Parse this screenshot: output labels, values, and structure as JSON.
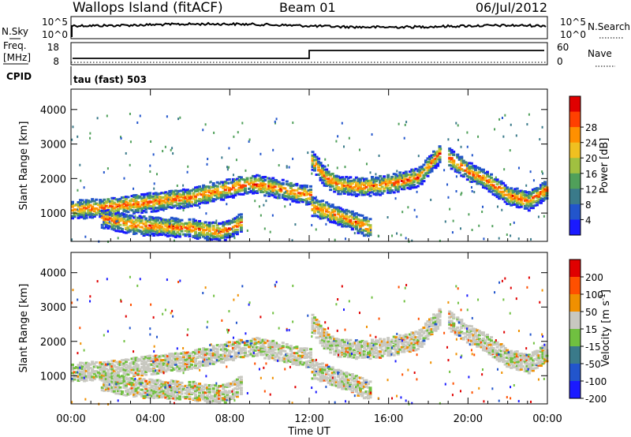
{
  "header": {
    "station": "Wallops Island (fitACF)",
    "beam": "Beam 01",
    "date": "06/Jul/2012"
  },
  "aux_panels": {
    "noise": {
      "left_label": "N.Sky",
      "right_label": "N.Search",
      "left_ticks": [
        "10^5",
        "10^0"
      ],
      "right_ticks": [
        "10^5",
        "10^0"
      ]
    },
    "freq": {
      "left_label_line1": "Freq.",
      "left_label_line2": "[MHz]",
      "right_label": "Nave",
      "left_ticks": [
        "18",
        "8"
      ],
      "right_ticks": [
        "60",
        "0"
      ]
    },
    "cpid": {
      "label": "CPID",
      "value_text": "tau (fast) 503"
    }
  },
  "chart_data": [
    {
      "type": "heatmap",
      "title": "Power",
      "ylabel": "Slant Range [km]",
      "ylim": [
        180,
        4590
      ],
      "yticks": [
        "1000",
        "2000",
        "3000",
        "4000"
      ],
      "xlabel": "Time UT",
      "xticks": [
        "00:00",
        "04:00",
        "08:00",
        "12:00",
        "16:00",
        "20:00",
        "00:00"
      ],
      "xlim_hours": [
        0,
        24
      ],
      "colorbar": {
        "label": "Power [dB]",
        "ticks": [
          "4",
          "8",
          "12",
          "16",
          "20",
          "24",
          "28"
        ],
        "colors": [
          "#1a1aff",
          "#2255cc",
          "#3a7a8a",
          "#50a05a",
          "#a0c040",
          "#f0c020",
          "#ff9000",
          "#ff4000",
          "#e00000"
        ]
      },
      "echo_bands": [
        {
          "t_hours": [
            0.0,
            1.5,
            3.0,
            4.5,
            6.0,
            7.5,
            9.0,
            10.5,
            12.0
          ],
          "range_km": [
            1100,
            1150,
            1250,
            1350,
            1450,
            1650,
            1850,
            1700,
            1500
          ]
        },
        {
          "t_hours": [
            1.5,
            3.0,
            4.5,
            6.0,
            7.5,
            8.5
          ],
          "range_km": [
            850,
            650,
            600,
            550,
            450,
            700
          ]
        },
        {
          "t_hours": [
            12.0,
            12.8,
            13.5,
            14.5,
            15.5,
            16.5,
            17.5,
            18.5
          ],
          "range_km": [
            2600,
            2000,
            1800,
            1750,
            1800,
            1900,
            2050,
            2700
          ]
        },
        {
          "t_hours": [
            12.0,
            13.0,
            14.0,
            15.0
          ],
          "range_km": [
            1200,
            1000,
            800,
            550
          ]
        },
        {
          "t_hours": [
            19.0,
            20.0,
            21.0,
            22.0,
            23.0,
            24.0
          ],
          "range_km": [
            2600,
            2200,
            1900,
            1500,
            1350,
            1700
          ]
        }
      ]
    },
    {
      "type": "heatmap",
      "title": "Velocity",
      "ylabel": "Slant Range [km]",
      "ylim": [
        180,
        4590
      ],
      "yticks": [
        "1000",
        "2000",
        "3000",
        "4000"
      ],
      "xlabel": "Time UT",
      "xticks": [
        "00:00",
        "04:00",
        "08:00",
        "12:00",
        "16:00",
        "20:00",
        "00:00"
      ],
      "xlim_hours": [
        0,
        24
      ],
      "colorbar": {
        "label": "Velocity [m s^-1]",
        "ticks": [
          "200",
          "100",
          "50",
          "15",
          "-15",
          "-50",
          "-100",
          "-200"
        ],
        "colors": [
          "#1a1aff",
          "#2255cc",
          "#3a7a8a",
          "#70c040",
          "#c8c8c0",
          "#f09000",
          "#ff5000",
          "#e00000"
        ]
      }
    }
  ]
}
